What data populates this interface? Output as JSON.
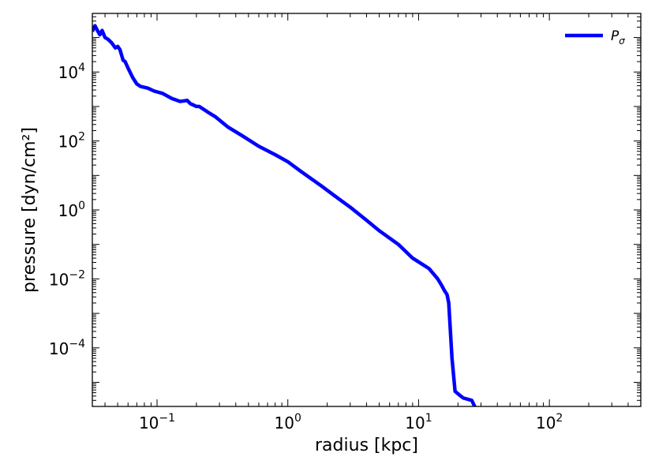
{
  "chart_data": {
    "type": "line",
    "title": "",
    "xlabel": "radius [kpc]",
    "ylabel": "pressure [dyn/cm²]",
    "xscale": "log",
    "yscale": "log",
    "xlim": [
      0.032,
      500
    ],
    "ylim": [
      2e-06,
      500000.0
    ],
    "grid": false,
    "legend_position": "top-right",
    "x_ticks": [
      {
        "value": 0.1,
        "base": "10",
        "exp": "−1"
      },
      {
        "value": 1,
        "base": "10",
        "exp": "0"
      },
      {
        "value": 10,
        "base": "10",
        "exp": "1"
      },
      {
        "value": 100,
        "base": "10",
        "exp": "2"
      }
    ],
    "y_ticks": [
      {
        "value": 10000,
        "base": "10",
        "exp": "4"
      },
      {
        "value": 100,
        "base": "10",
        "exp": "2"
      },
      {
        "value": 1,
        "base": "10",
        "exp": "0"
      },
      {
        "value": 0.01,
        "base": "10",
        "exp": "−2"
      },
      {
        "value": 0.0001,
        "base": "10",
        "exp": "−4"
      }
    ],
    "series": [
      {
        "name": "P_σ",
        "legend_main": "P",
        "legend_sub": "σ",
        "color": "#0000ff",
        "x": [
          0.032,
          0.0335,
          0.035,
          0.0365,
          0.038,
          0.04,
          0.042,
          0.045,
          0.048,
          0.05,
          0.052,
          0.055,
          0.057,
          0.06,
          0.065,
          0.07,
          0.075,
          0.085,
          0.095,
          0.11,
          0.13,
          0.15,
          0.17,
          0.18,
          0.19,
          0.2,
          0.21,
          0.23,
          0.25,
          0.28,
          0.35,
          0.45,
          0.6,
          0.8,
          1.0,
          1.3,
          1.8,
          2.3,
          3.0,
          4.0,
          5.0,
          7.0,
          9.0,
          12.0,
          14.0,
          15.0,
          15.8,
          16.5,
          17.0,
          18.0,
          19.0,
          21.0,
          22.0,
          24.0,
          25.5,
          27.0,
          28.0
        ],
        "y": [
          150000,
          220000,
          160000,
          120000,
          160000,
          100000,
          90000,
          70000,
          50000,
          55000,
          45000,
          22000,
          20000,
          13000,
          7000,
          4500,
          3800,
          3400,
          2800,
          2400,
          1700,
          1400,
          1500,
          1200,
          1100,
          1000,
          1000,
          800,
          650,
          500,
          250,
          140,
          70,
          40,
          25,
          12,
          5,
          2.5,
          1.2,
          0.5,
          0.25,
          0.1,
          0.04,
          0.02,
          0.01,
          0.0065,
          0.0045,
          0.0035,
          0.002,
          5e-05,
          5.5e-06,
          4e-06,
          3.5e-06,
          3.2e-06,
          3e-06,
          1.9e-06,
          8.5e-07
        ]
      }
    ]
  }
}
